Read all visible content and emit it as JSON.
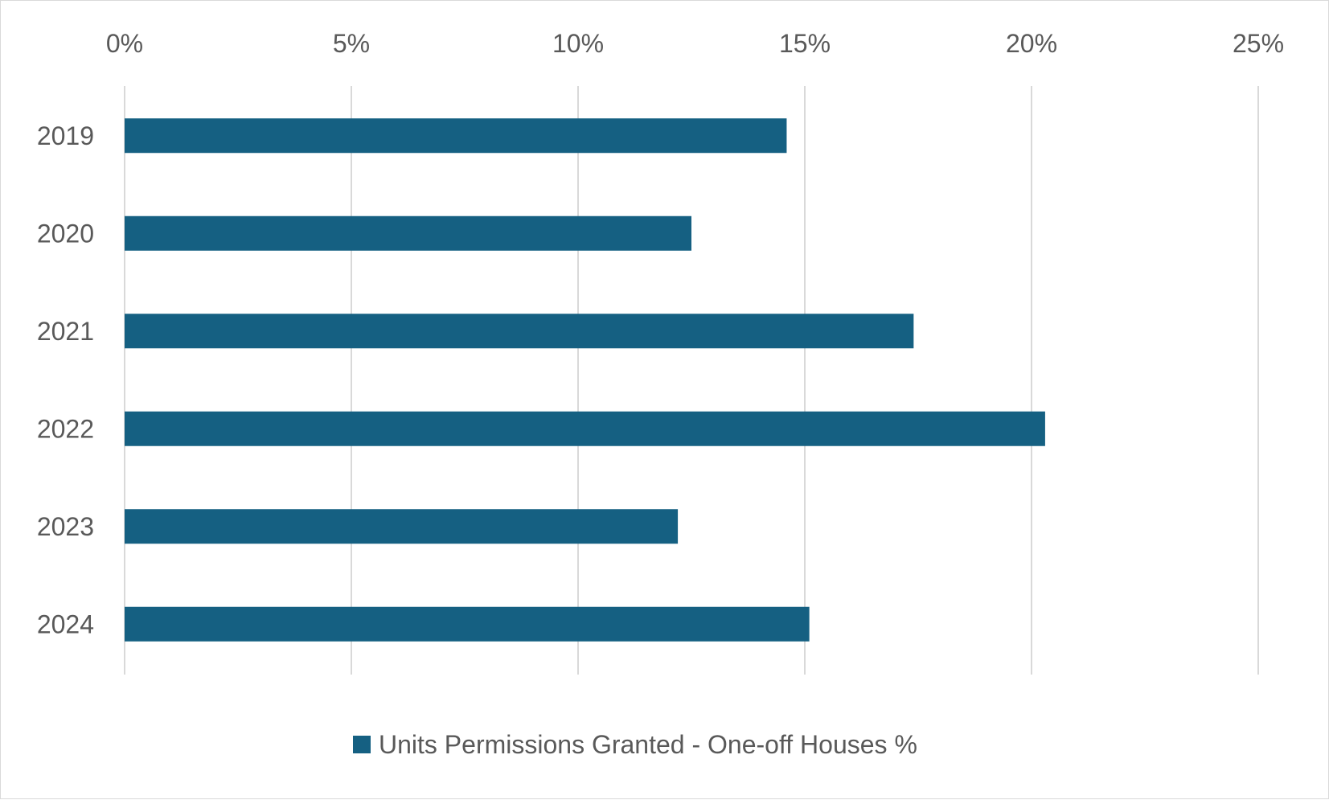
{
  "chart_data": {
    "type": "bar",
    "orientation": "horizontal",
    "categories": [
      "2019",
      "2020",
      "2021",
      "2022",
      "2023",
      "2024"
    ],
    "series": [
      {
        "name": "Units Permissions Granted - One-off Houses %",
        "values": [
          14.6,
          12.5,
          17.4,
          20.3,
          12.2,
          15.1
        ],
        "color": "#156082"
      }
    ],
    "x_ticks": [
      "0%",
      "5%",
      "10%",
      "15%",
      "20%",
      "25%"
    ],
    "xlim": [
      0,
      25
    ],
    "x_axis_position": "top",
    "grid": true,
    "gridline_color": "#d9d9d9",
    "text_color": "#595959",
    "legend_position": "bottom"
  }
}
